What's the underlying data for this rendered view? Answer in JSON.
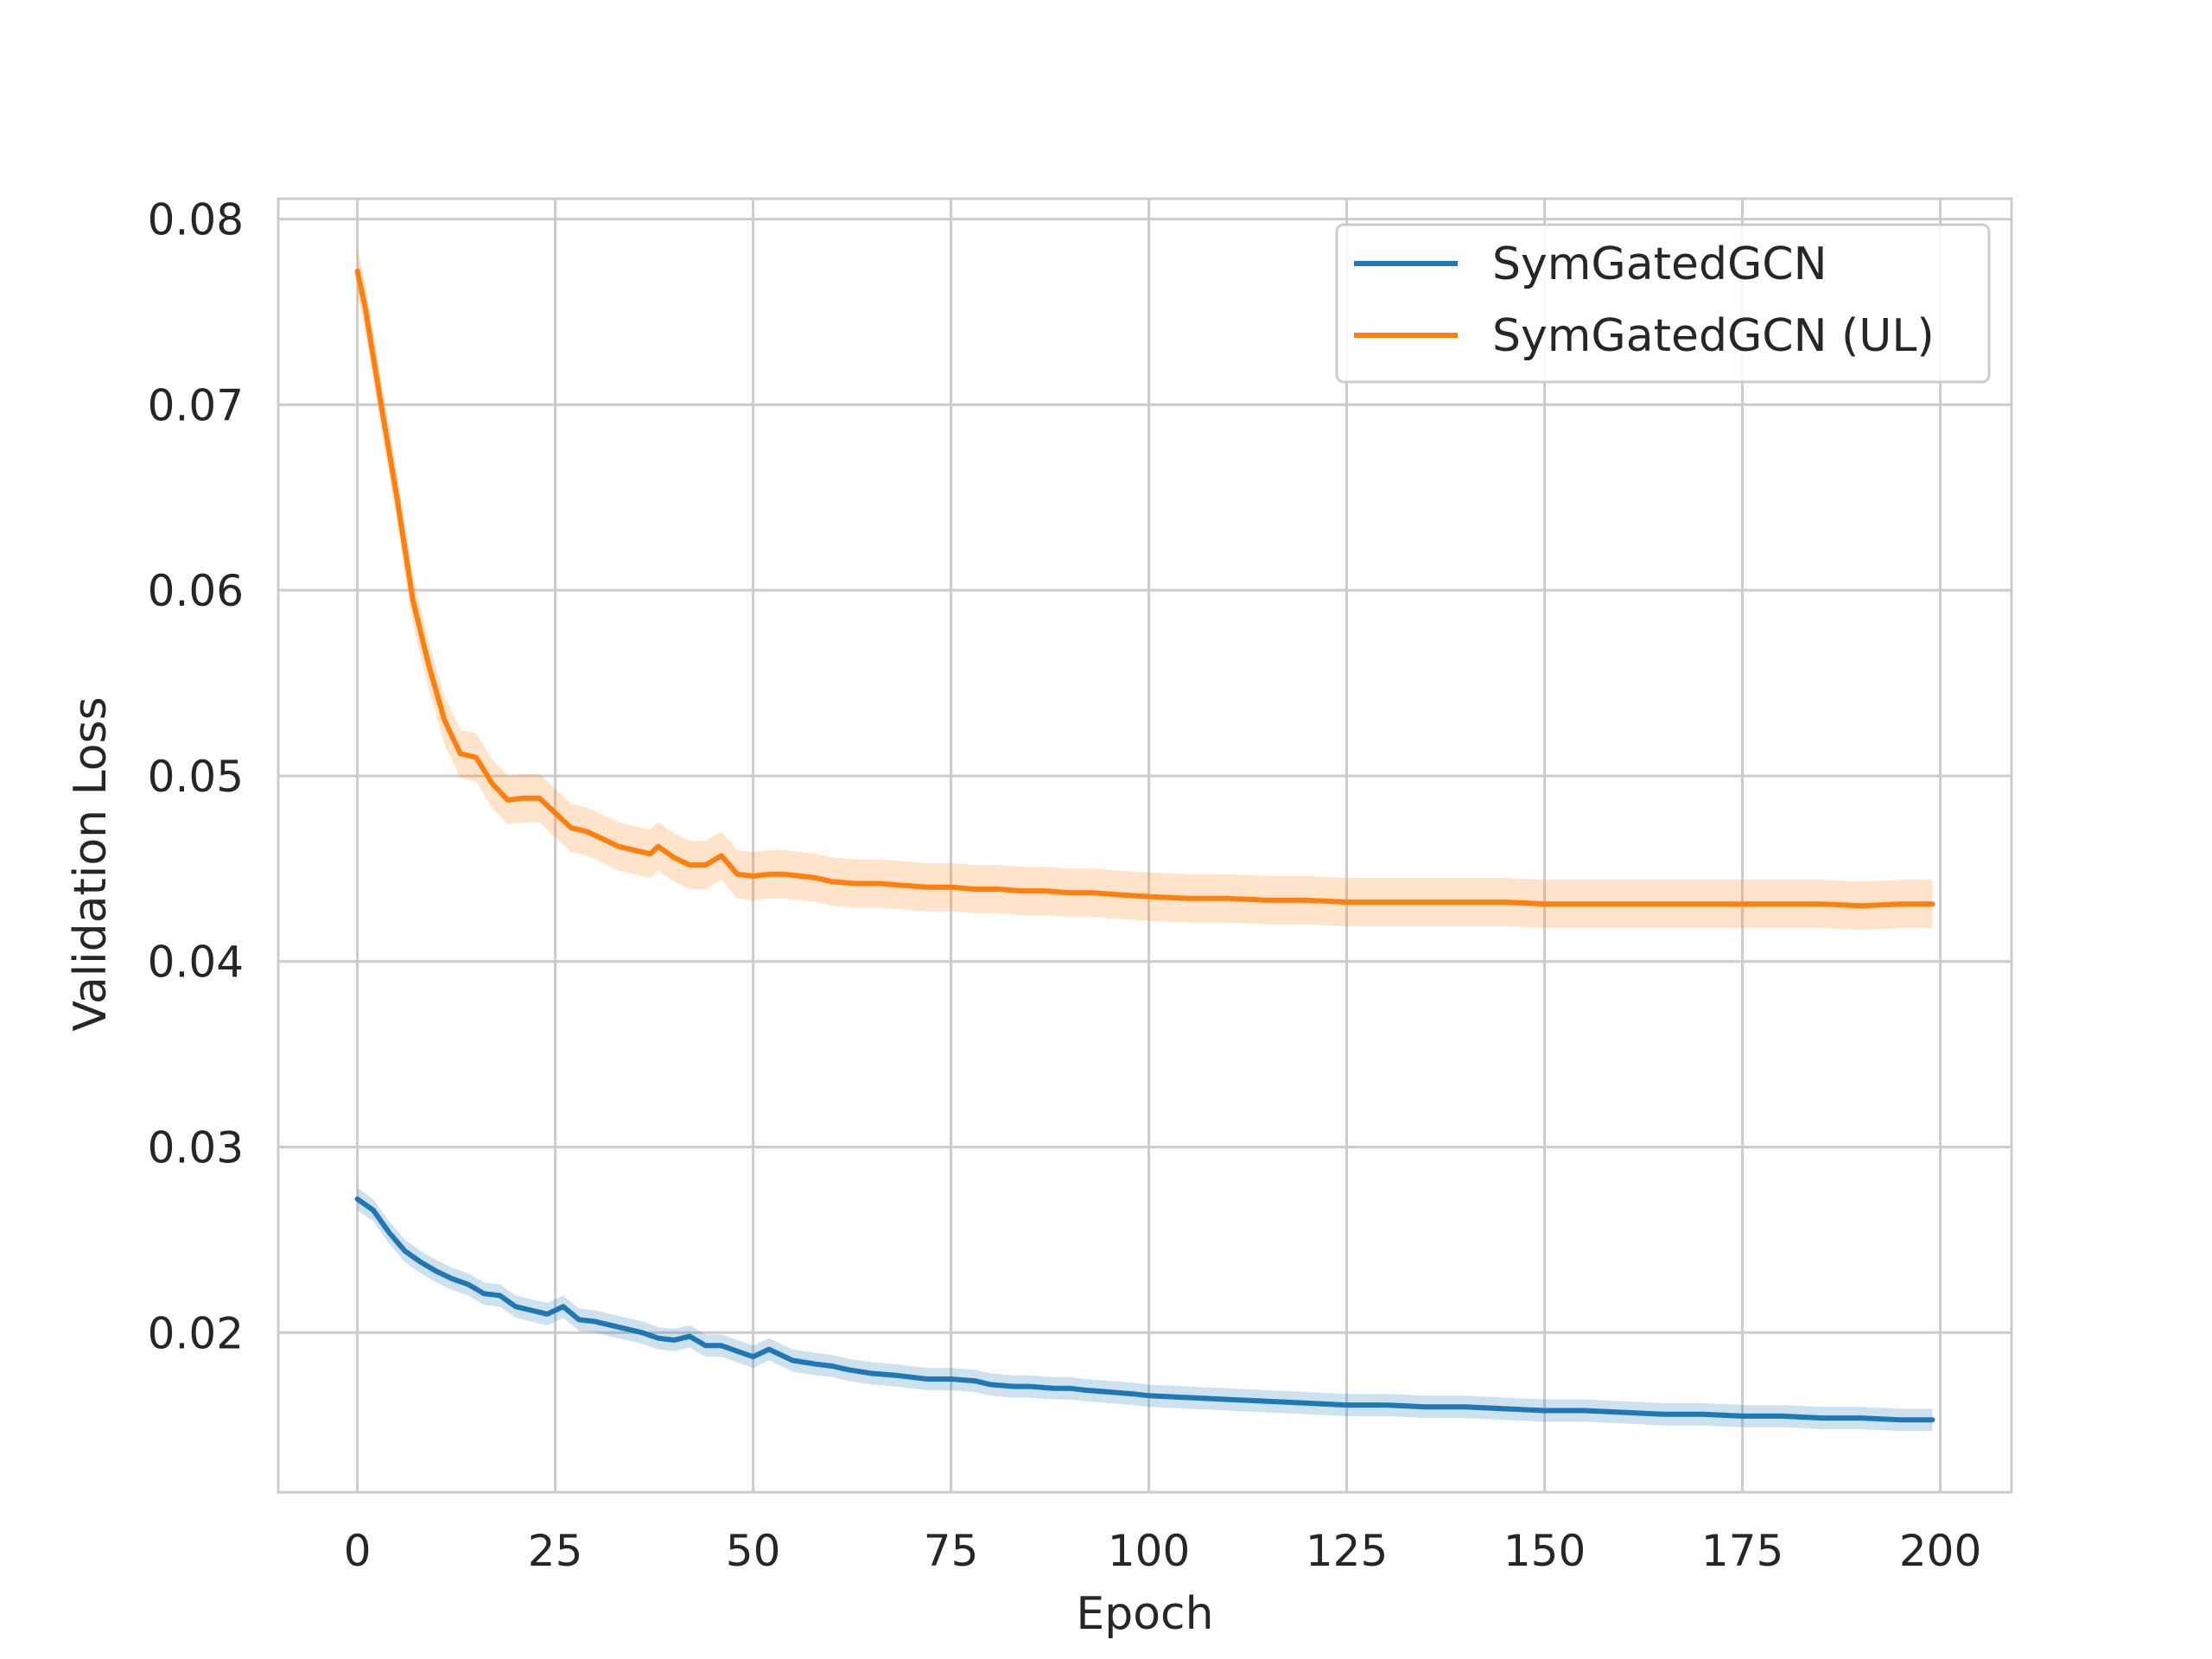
{
  "chart_data": {
    "type": "line",
    "xlabel": "Epoch",
    "ylabel": "Validation Loss",
    "xlim": [
      -10,
      209
    ],
    "ylim": [
      0.0114,
      0.0811
    ],
    "xticks": [
      0,
      25,
      50,
      75,
      100,
      125,
      150,
      175,
      200
    ],
    "xtick_labels": [
      "0",
      "25",
      "50",
      "75",
      "100",
      "125",
      "150",
      "175",
      "200"
    ],
    "yticks": [
      0.02,
      0.03,
      0.04,
      0.05,
      0.06,
      0.07,
      0.08
    ],
    "ytick_labels": [
      "0.02",
      "0.03",
      "0.04",
      "0.05",
      "0.06",
      "0.07",
      "0.08"
    ],
    "grid": true,
    "legend_position": "top-right",
    "series": [
      {
        "name": "SymGatedGCN",
        "color": "#1f77b4",
        "band": true,
        "points": [
          [
            0,
            0.0272
          ],
          [
            2,
            0.0266
          ],
          [
            4,
            0.0254
          ],
          [
            6,
            0.0244
          ],
          [
            8,
            0.0238
          ],
          [
            10,
            0.0233
          ],
          [
            12,
            0.0229
          ],
          [
            14,
            0.0226
          ],
          [
            16,
            0.0221
          ],
          [
            18,
            0.022
          ],
          [
            20,
            0.0214
          ],
          [
            22,
            0.0212
          ],
          [
            24,
            0.021
          ],
          [
            26,
            0.0214
          ],
          [
            28,
            0.0207
          ],
          [
            30,
            0.0206
          ],
          [
            32,
            0.0204
          ],
          [
            34,
            0.0202
          ],
          [
            36,
            0.02
          ],
          [
            38,
            0.0197
          ],
          [
            40,
            0.0196
          ],
          [
            42,
            0.0198
          ],
          [
            44,
            0.0193
          ],
          [
            46,
            0.0193
          ],
          [
            48,
            0.019
          ],
          [
            50,
            0.0187
          ],
          [
            52,
            0.0191
          ],
          [
            55,
            0.0185
          ],
          [
            58,
            0.0183
          ],
          [
            60,
            0.0182
          ],
          [
            62,
            0.018
          ],
          [
            65,
            0.0178
          ],
          [
            68,
            0.0177
          ],
          [
            70,
            0.0176
          ],
          [
            72,
            0.0175
          ],
          [
            75,
            0.0175
          ],
          [
            78,
            0.0174
          ],
          [
            80,
            0.0172
          ],
          [
            83,
            0.0171
          ],
          [
            85,
            0.0171
          ],
          [
            88,
            0.017
          ],
          [
            90,
            0.017
          ],
          [
            92,
            0.0169
          ],
          [
            95,
            0.0168
          ],
          [
            98,
            0.0167
          ],
          [
            100,
            0.0166
          ],
          [
            105,
            0.0165
          ],
          [
            110,
            0.0164
          ],
          [
            115,
            0.0163
          ],
          [
            120,
            0.0162
          ],
          [
            125,
            0.0161
          ],
          [
            130,
            0.0161
          ],
          [
            135,
            0.016
          ],
          [
            140,
            0.016
          ],
          [
            145,
            0.0159
          ],
          [
            150,
            0.0158
          ],
          [
            155,
            0.0158
          ],
          [
            160,
            0.0157
          ],
          [
            165,
            0.0156
          ],
          [
            170,
            0.0156
          ],
          [
            175,
            0.0155
          ],
          [
            180,
            0.0155
          ],
          [
            185,
            0.0154
          ],
          [
            190,
            0.0154
          ],
          [
            195,
            0.0153
          ],
          [
            199,
            0.0153
          ]
        ]
      },
      {
        "name": "SymGatedGCN (UL)",
        "color": "#ff7f0e",
        "band": true,
        "points": [
          [
            0,
            0.0772
          ],
          [
            1,
            0.0752
          ],
          [
            3,
            0.07
          ],
          [
            5,
            0.065
          ],
          [
            7,
            0.0595
          ],
          [
            9,
            0.056
          ],
          [
            11,
            0.053
          ],
          [
            13,
            0.0512
          ],
          [
            15,
            0.051
          ],
          [
            17,
            0.0496
          ],
          [
            19,
            0.0487
          ],
          [
            21,
            0.0488
          ],
          [
            23,
            0.0488
          ],
          [
            25,
            0.048
          ],
          [
            27,
            0.0472
          ],
          [
            29,
            0.047
          ],
          [
            31,
            0.0466
          ],
          [
            33,
            0.0462
          ],
          [
            35,
            0.046
          ],
          [
            37,
            0.0458
          ],
          [
            38,
            0.0462
          ],
          [
            40,
            0.0456
          ],
          [
            42,
            0.0452
          ],
          [
            44,
            0.0452
          ],
          [
            46,
            0.0457
          ],
          [
            48,
            0.0447
          ],
          [
            50,
            0.0446
          ],
          [
            52,
            0.0447
          ],
          [
            54,
            0.0447
          ],
          [
            56,
            0.0446
          ],
          [
            58,
            0.0445
          ],
          [
            60,
            0.0443
          ],
          [
            63,
            0.0442
          ],
          [
            66,
            0.0442
          ],
          [
            69,
            0.0441
          ],
          [
            72,
            0.044
          ],
          [
            75,
            0.044
          ],
          [
            78,
            0.0439
          ],
          [
            81,
            0.0439
          ],
          [
            84,
            0.0438
          ],
          [
            87,
            0.0438
          ],
          [
            90,
            0.0437
          ],
          [
            93,
            0.0437
          ],
          [
            96,
            0.0436
          ],
          [
            100,
            0.0435
          ],
          [
            105,
            0.0434
          ],
          [
            110,
            0.0434
          ],
          [
            115,
            0.0433
          ],
          [
            120,
            0.0433
          ],
          [
            125,
            0.0432
          ],
          [
            130,
            0.0432
          ],
          [
            135,
            0.0432
          ],
          [
            140,
            0.0432
          ],
          [
            145,
            0.0432
          ],
          [
            150,
            0.0431
          ],
          [
            155,
            0.0431
          ],
          [
            160,
            0.0431
          ],
          [
            165,
            0.0431
          ],
          [
            170,
            0.0431
          ],
          [
            175,
            0.0431
          ],
          [
            180,
            0.0431
          ],
          [
            185,
            0.0431
          ],
          [
            190,
            0.043
          ],
          [
            195,
            0.0431
          ],
          [
            199,
            0.0431
          ]
        ]
      }
    ]
  }
}
